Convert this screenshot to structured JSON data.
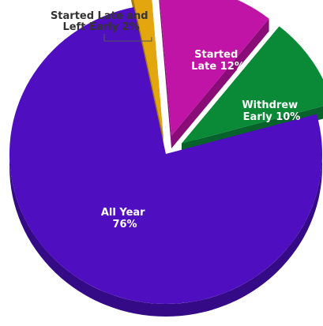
{
  "chart_data": {
    "type": "pie",
    "style": "3d-exploded",
    "slices": [
      {
        "name": "Started Late",
        "value": 12,
        "label_line1": "Started",
        "label_line2": "Late 12%",
        "color": "#c014a6",
        "side_color": "#8a0c77"
      },
      {
        "name": "Withdrew Early",
        "value": 10,
        "label_line1": "Withdrew",
        "label_line2": "Early 10%",
        "color": "#0a8a37",
        "side_color": "#06612a"
      },
      {
        "name": "All Year",
        "value": 76,
        "label_line1": "All Year",
        "label_line2": "76%",
        "color": "#4f0fc0",
        "side_color": "#350a86"
      },
      {
        "name": "Started Late and Left Early",
        "value": 2,
        "label_line1": "Started Late and",
        "label_line2": "Left Early 2%",
        "color": "#e3a60f",
        "side_color": "#a87a08"
      }
    ]
  }
}
